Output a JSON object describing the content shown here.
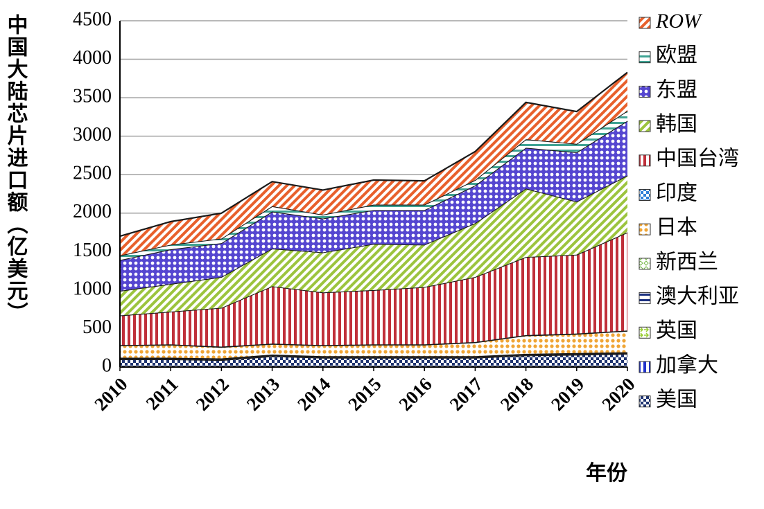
{
  "chart_data": {
    "type": "stacked_area",
    "ylabel": "中国大陆芯片进口额（亿美元）",
    "xlabel": "年份",
    "categories": [
      "2010",
      "2011",
      "2012",
      "2013",
      "2014",
      "2015",
      "2016",
      "2017",
      "2018",
      "2019",
      "2020"
    ],
    "ylim": [
      0,
      4500
    ],
    "yticks": [
      0,
      500,
      1000,
      1500,
      2000,
      2500,
      3000,
      3500,
      4000,
      4500
    ],
    "grid": true,
    "legend": "right",
    "series": [
      {
        "name": "美国",
        "color": "#1f3470",
        "values": [
          100,
          100,
          90,
          140,
          120,
          120,
          120,
          120,
          150,
          160,
          170
        ]
      },
      {
        "name": "加拿大",
        "color": "#2233cc",
        "values": [
          10,
          10,
          10,
          10,
          10,
          10,
          10,
          10,
          10,
          10,
          10
        ]
      },
      {
        "name": "英国",
        "color": "#99cc33",
        "values": [
          5,
          5,
          5,
          5,
          5,
          5,
          5,
          5,
          5,
          5,
          5
        ]
      },
      {
        "name": "澳大利亚",
        "color": "#1a2f80",
        "values": [
          5,
          5,
          5,
          5,
          5,
          5,
          5,
          5,
          5,
          5,
          5
        ]
      },
      {
        "name": "新西兰",
        "color": "#77b84a",
        "values": [
          2,
          2,
          2,
          2,
          2,
          2,
          2,
          2,
          2,
          2,
          2
        ]
      },
      {
        "name": "日本",
        "color": "#f0a535",
        "values": [
          158,
          168,
          148,
          138,
          138,
          148,
          148,
          178,
          238,
          248,
          278
        ]
      },
      {
        "name": "印度",
        "color": "#2f7fd8",
        "values": [
          5,
          5,
          5,
          5,
          5,
          5,
          5,
          5,
          5,
          5,
          5
        ]
      },
      {
        "name": "中国台湾",
        "color": "#c0303a",
        "values": [
          385,
          425,
          505,
          745,
          685,
          705,
          745,
          845,
          1015,
          1025,
          1275
        ]
      },
      {
        "name": "韩国",
        "color": "#9cc43e",
        "values": [
          320,
          360,
          400,
          490,
          520,
          600,
          550,
          700,
          890,
          690,
          740
        ]
      },
      {
        "name": "东盟",
        "color": "#5546d0",
        "values": [
          400,
          450,
          440,
          480,
          440,
          440,
          450,
          490,
          530,
          640,
          710
        ]
      },
      {
        "name": "欧盟",
        "color": "#3fa393",
        "values": [
          60,
          60,
          60,
          70,
          50,
          70,
          70,
          70,
          110,
          110,
          130
        ]
      },
      {
        "name": "ROW",
        "color": "#e8602c",
        "values": [
          250,
          300,
          330,
          320,
          320,
          320,
          310,
          370,
          480,
          420,
          500
        ]
      }
    ]
  }
}
